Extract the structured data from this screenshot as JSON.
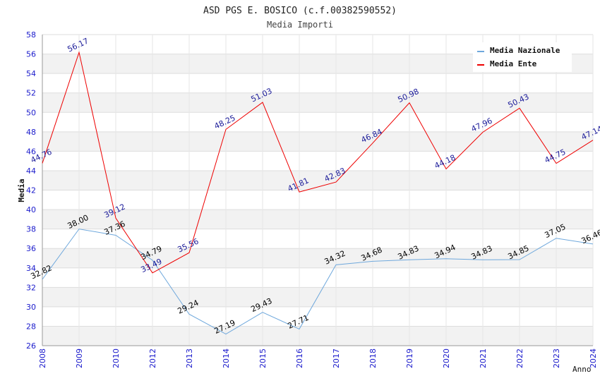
{
  "chart_data": {
    "type": "line",
    "title": "ASD PGS E. BOSICO (c.f.00382590552)",
    "subtitle": "Media Importi",
    "xlabel": "Anno",
    "ylabel": "Media",
    "ylim": [
      26,
      58
    ],
    "ytick_step": 2,
    "grid": true,
    "legend_position": "top-right",
    "categories": [
      "2008",
      "2009",
      "2010",
      "2012",
      "2013",
      "2014",
      "2015",
      "2016",
      "2017",
      "2018",
      "2019",
      "2020",
      "2021",
      "2022",
      "2023",
      "2024"
    ],
    "series": [
      {
        "name": "Media Nazionale",
        "color": "#6fa8dc",
        "label_color": "#000000",
        "values": [
          32.82,
          38.0,
          37.36,
          34.79,
          29.24,
          27.19,
          29.43,
          27.71,
          34.32,
          34.68,
          34.83,
          34.94,
          34.83,
          34.85,
          37.05,
          36.46
        ],
        "labels": [
          "32.82",
          "38.00",
          "37.36",
          "34.79",
          "29.24",
          "27.19",
          "29.43",
          "27.71",
          "34.32",
          "34.68",
          "34.83",
          "34.94",
          "34.83",
          "34.85",
          "37.05",
          "36.46"
        ]
      },
      {
        "name": "Media Ente",
        "color": "#ee0000",
        "label_color": "#1a1a99",
        "values": [
          44.76,
          56.17,
          39.12,
          33.49,
          35.56,
          48.25,
          51.03,
          41.81,
          42.83,
          46.84,
          50.98,
          44.18,
          47.96,
          50.43,
          44.75,
          47.14
        ],
        "labels": [
          "44.76",
          "56.17",
          "39.12",
          "33.49",
          "35.56",
          "48.25",
          "51.03",
          "41.81",
          "42.83",
          "46.84",
          "50.98",
          "44.18",
          "47.96",
          "50.43",
          "44.75",
          "47.14"
        ]
      }
    ]
  }
}
